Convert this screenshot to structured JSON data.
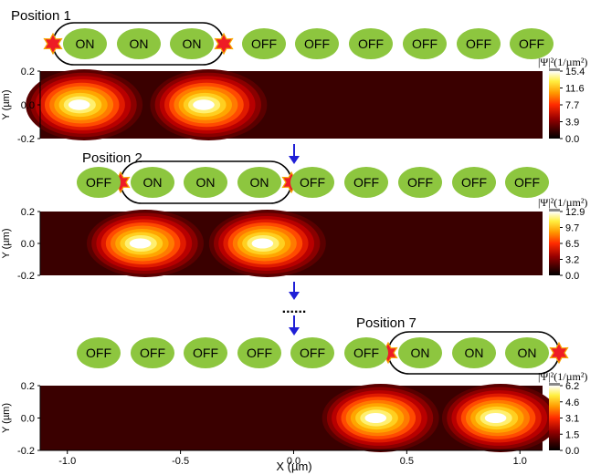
{
  "panels": [
    {
      "position_label": "Position 1",
      "cells": [
        "ON",
        "ON",
        "ON",
        "OFF",
        "OFF",
        "OFF",
        "OFF",
        "OFF",
        "OFF"
      ],
      "colorbar": {
        "ticks": [
          "15.4",
          "11.6",
          "7.7",
          "3.9",
          "0.0"
        ]
      },
      "peaks": [
        {
          "x": -0.95,
          "y": 0.0,
          "amp": 1.0
        },
        {
          "x": -0.4,
          "y": 0.0,
          "amp": 0.97
        }
      ]
    },
    {
      "position_label": "Position 2",
      "cells": [
        "OFF",
        "ON",
        "ON",
        "ON",
        "OFF",
        "OFF",
        "OFF",
        "OFF",
        "OFF"
      ],
      "colorbar": {
        "ticks": [
          "12.9",
          "9.7",
          "6.5",
          "3.2",
          "0.0"
        ]
      },
      "peaks": [
        {
          "x": -0.68,
          "y": 0.0,
          "amp": 1.0
        },
        {
          "x": -0.14,
          "y": 0.0,
          "amp": 0.98
        }
      ]
    },
    {
      "position_label": "Position 7",
      "cells": [
        "OFF",
        "OFF",
        "OFF",
        "OFF",
        "OFF",
        "OFF",
        "ON",
        "ON",
        "ON"
      ],
      "colorbar": {
        "ticks": [
          "6.2",
          "4.6",
          "3.1",
          "1.5",
          "0.0"
        ]
      },
      "peaks": [
        {
          "x": 0.36,
          "y": 0.0,
          "amp": 1.0
        },
        {
          "x": 0.89,
          "y": 0.0,
          "amp": 0.98
        }
      ]
    }
  ],
  "y_axis": {
    "label": "Y (µm)",
    "ticks": [
      "0.2",
      "0.0",
      "-0.2"
    ]
  },
  "x_axis": {
    "label": "X (µm)",
    "ticks": [
      "-1.0",
      "-0.5",
      "0.0",
      "0.5",
      "1.0"
    ]
  },
  "colorbar_label": "|Ψ|²(1/µm²)",
  "ellipsis": "......",
  "colors": {
    "cell_fill": "#8dc63f",
    "star_fill": "#ee1c25",
    "star_stroke": "#f7a600",
    "arrow": "#1f1fd6",
    "heatmap_background": "#3a0000"
  }
}
